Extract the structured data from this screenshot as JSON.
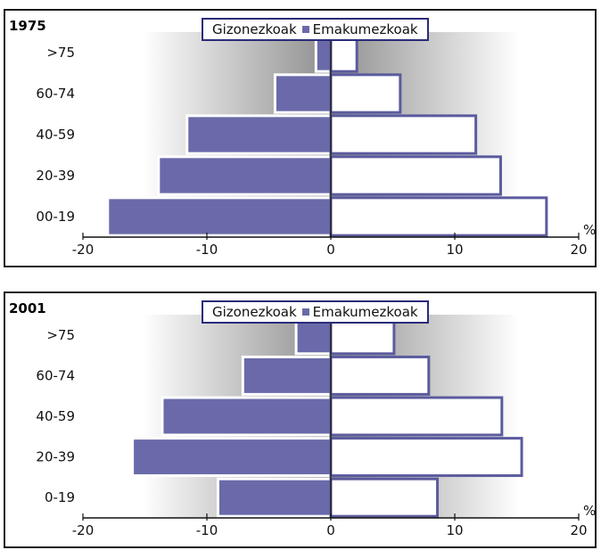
{
  "chart_data": [
    {
      "type": "bar",
      "title": "1975",
      "categories": [
        "00-19",
        "20-39",
        "40-59",
        "60-74",
        ">75"
      ],
      "series": [
        {
          "name": "Gizonezkoak",
          "values": [
            17.4,
            13.7,
            11.7,
            5.6,
            2.1
          ]
        },
        {
          "name": "Emakumezkoak",
          "values": [
            -18,
            -13.9,
            -11.6,
            -4.5,
            -1.2
          ]
        }
      ],
      "xlim": [
        -20,
        20
      ],
      "xticks": [
        -20,
        -10,
        0,
        10,
        20
      ],
      "unit": "%",
      "legend": "top-center",
      "colors": {
        "male": "#ffffff",
        "female": "#6a6aaa",
        "border": "#5b5b9e"
      }
    },
    {
      "type": "bar",
      "title": "2001",
      "categories": [
        "0-19",
        "20-39",
        "40-59",
        "60-74",
        ">75"
      ],
      "series": [
        {
          "name": "Gizonezkoak",
          "values": [
            8.6,
            15.4,
            13.8,
            7.9,
            5.1
          ]
        },
        {
          "name": "Emakumezkoak",
          "values": [
            -9.1,
            -16,
            -13.6,
            -7.1,
            -2.8
          ]
        }
      ],
      "xlim": [
        -20,
        20
      ],
      "xticks": [
        -20,
        -10,
        0,
        10,
        20
      ],
      "unit": "%",
      "legend": "top-center",
      "colors": {
        "male": "#ffffff",
        "female": "#6a6aaa",
        "border": "#5b5b9e"
      }
    }
  ]
}
